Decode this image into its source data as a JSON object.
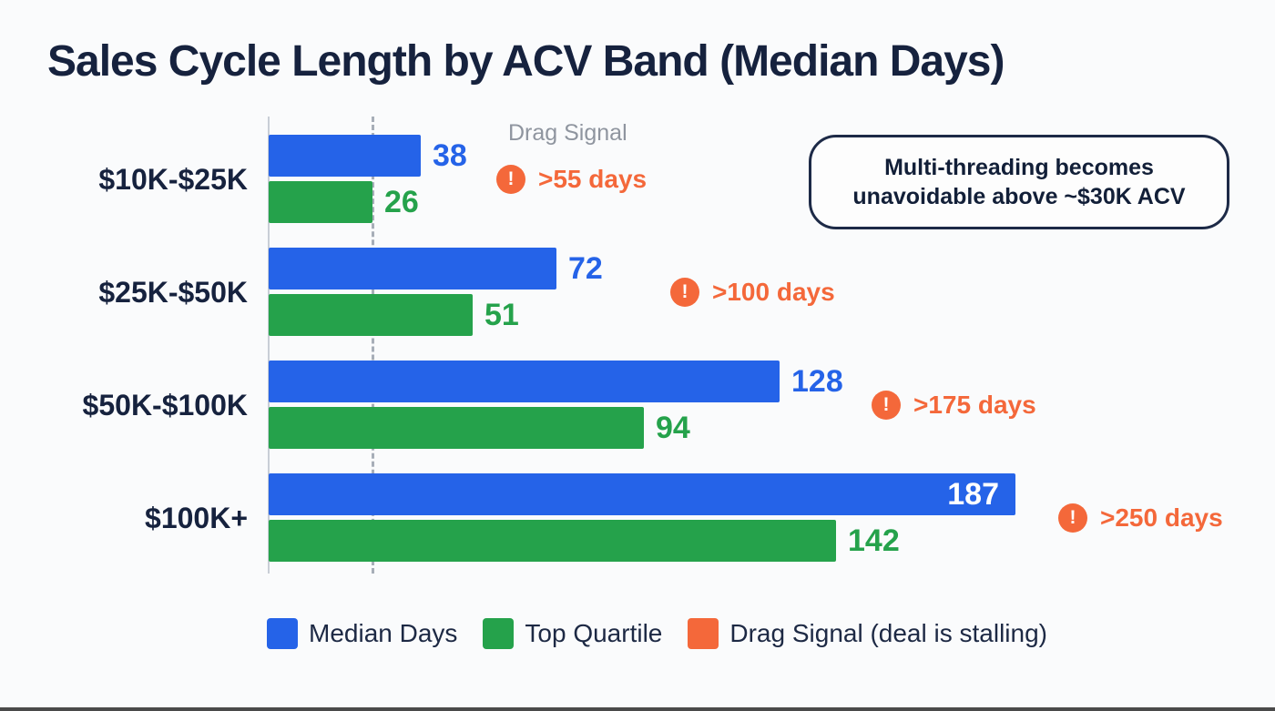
{
  "title": "Sales Cycle Length by ACV Band (Median Days)",
  "drag_signal_header": "Drag Signal",
  "callout_text": "Multi-threading becomes unavoidable above ~$30K ACV",
  "colors": {
    "background": "#fafbfc",
    "title_text": "#16223e",
    "median_blue": "#2563e8",
    "quartile_green": "#25a24b",
    "drag_orange": "#f4683a",
    "axis_gray": "#c9ced6",
    "dashed_line_gray": "#a7aeb8",
    "header_gray": "#8f959f"
  },
  "legend": {
    "items": [
      {
        "label": "Median Days",
        "color": "#2563e8"
      },
      {
        "label": "Top Quartile",
        "color": "#25a24b"
      },
      {
        "label": "Drag Signal (deal is stalling)",
        "color": "#f4683a"
      }
    ]
  },
  "chart_data": {
    "type": "bar",
    "orientation": "horizontal",
    "title": "Sales Cycle Length by ACV Band (Median Days)",
    "categories": [
      "$10K-$25K",
      "$25K-$50K",
      "$50K-$100K",
      "$100K+"
    ],
    "series": [
      {
        "name": "Median Days",
        "color": "#2563e8",
        "values": [
          38,
          72,
          128,
          187
        ]
      },
      {
        "name": "Top Quartile",
        "color": "#25a24b",
        "values": [
          26,
          51,
          94,
          142
        ]
      }
    ],
    "drag_signals": [
      {
        "label": ">55 days"
      },
      {
        "label": ">100 days"
      },
      {
        "label": ">175 days"
      },
      {
        "label": ">250 days"
      }
    ],
    "xlim": [
      0,
      190
    ],
    "legend_position": "bottom",
    "grid": false
  }
}
